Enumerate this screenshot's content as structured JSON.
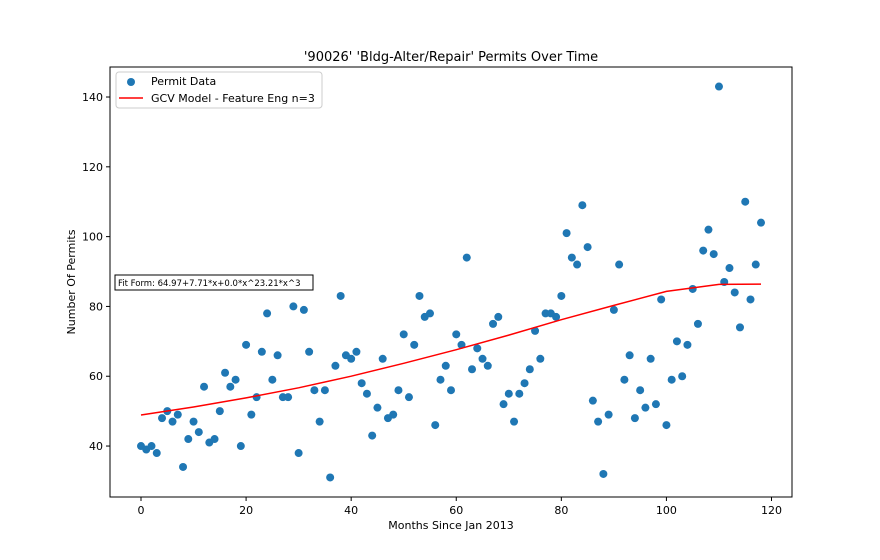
{
  "chart_data": {
    "type": "scatter",
    "title": "'90026' 'Bldg-Alter/Repair' Permits Over Time",
    "xlabel": "Months Since Jan 2013",
    "ylabel": "Number Of Permits",
    "xlim": [
      -5.9,
      123.9
    ],
    "ylim": [
      25.4,
      148.6
    ],
    "xticks": [
      0,
      20,
      40,
      60,
      80,
      100,
      120
    ],
    "yticks": [
      40,
      60,
      80,
      100,
      120,
      140
    ],
    "grid": false,
    "legend_position": "upper left",
    "annotation": "Fit Form: 64.97+7.71*x+0.0*x^23.21*x^3",
    "series": [
      {
        "name": "Permit Data",
        "kind": "scatter",
        "color": "#1f77b4",
        "x": [
          0,
          1,
          2,
          3,
          4,
          5,
          6,
          7,
          8,
          9,
          10,
          11,
          12,
          13,
          14,
          15,
          16,
          17,
          18,
          19,
          20,
          21,
          22,
          23,
          24,
          25,
          26,
          27,
          28,
          29,
          30,
          31,
          32,
          33,
          34,
          35,
          36,
          37,
          38,
          39,
          40,
          41,
          42,
          43,
          44,
          45,
          46,
          47,
          48,
          49,
          50,
          51,
          52,
          53,
          54,
          55,
          56,
          57,
          58,
          59,
          60,
          61,
          62,
          63,
          64,
          65,
          66,
          67,
          68,
          69,
          70,
          71,
          72,
          73,
          74,
          75,
          76,
          77,
          78,
          79,
          80,
          81,
          82,
          83,
          84,
          85,
          86,
          87,
          88,
          89,
          90,
          91,
          92,
          93,
          94,
          95,
          96,
          97,
          98,
          99,
          100,
          101,
          102,
          103,
          104,
          105,
          106,
          107,
          108,
          109,
          110,
          111,
          112,
          113,
          114,
          115,
          116,
          117,
          118
        ],
        "y": [
          40,
          39,
          40,
          38,
          48,
          50,
          47,
          49,
          34,
          42,
          47,
          44,
          57,
          41,
          42,
          50,
          61,
          57,
          59,
          40,
          69,
          49,
          54,
          67,
          78,
          59,
          66,
          54,
          54,
          80,
          38,
          79,
          67,
          56,
          47,
          56,
          31,
          63,
          83,
          66,
          65,
          67,
          58,
          55,
          43,
          51,
          65,
          48,
          49,
          56,
          72,
          54,
          69,
          83,
          77,
          78,
          46,
          59,
          63,
          56,
          72,
          69,
          94,
          62,
          68,
          65,
          63,
          75,
          77,
          52,
          55,
          47,
          55,
          58,
          62,
          73,
          65,
          78,
          78,
          77,
          83,
          101,
          94,
          92,
          109,
          97,
          53,
          47,
          32,
          49,
          79,
          92,
          59,
          66,
          48,
          56,
          51,
          65,
          52,
          82,
          46,
          59,
          70,
          60,
          69,
          85,
          75,
          96,
          102,
          95,
          143,
          87,
          91,
          84,
          74,
          110,
          82,
          92,
          104
        ]
      },
      {
        "name": "GCV Model - Feature Eng n=3",
        "kind": "line",
        "color": "#ff0000",
        "x": [
          0,
          10,
          20,
          30,
          40,
          50,
          60,
          70,
          80,
          90,
          100,
          110,
          118
        ],
        "y": [
          48.9,
          51.2,
          53.8,
          56.7,
          60.0,
          63.7,
          67.6,
          71.8,
          76.2,
          80.3,
          84.3,
          86.3,
          86.4
        ]
      }
    ]
  }
}
